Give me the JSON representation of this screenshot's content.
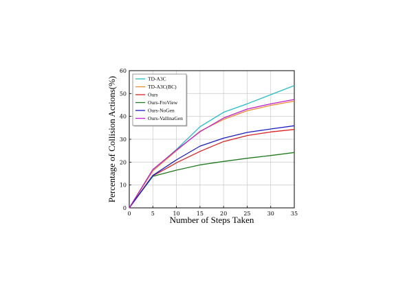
{
  "chart_data": {
    "type": "line",
    "title": "",
    "xlabel": "Number of Steps Taken",
    "ylabel": "Percentage of Collision Actions(%)",
    "xlim": [
      0,
      35
    ],
    "ylim": [
      0,
      60
    ],
    "xticks": [
      0,
      5,
      10,
      15,
      20,
      25,
      30,
      35
    ],
    "yticks": [
      0,
      10,
      20,
      30,
      40,
      50,
      60
    ],
    "grid": true,
    "legend_position": "top-left",
    "x": [
      0,
      5,
      10,
      15,
      20,
      25,
      30,
      35
    ],
    "series": [
      {
        "name": "TD-A3C",
        "color": "#1fbfc6",
        "values": [
          0,
          16.5,
          25.5,
          35.5,
          41.8,
          45.5,
          49.5,
          53.5
        ]
      },
      {
        "name": "TD-A3C(BC)",
        "color": "#ee8a2e",
        "values": [
          0,
          16.2,
          25.0,
          33.5,
          38.7,
          42.5,
          44.8,
          46.7
        ]
      },
      {
        "name": "Ours",
        "color": "#e02020",
        "values": [
          0,
          14.0,
          19.7,
          24.7,
          29.0,
          31.6,
          33.2,
          34.3
        ]
      },
      {
        "name": "Ours-FroView",
        "color": "#1e7a1e",
        "values": [
          0,
          13.8,
          16.5,
          18.8,
          20.3,
          21.7,
          22.9,
          24.2
        ]
      },
      {
        "name": "Ours-NoGen",
        "color": "#1a1ac8",
        "values": [
          0,
          14.2,
          21.0,
          27.0,
          30.5,
          33.0,
          34.5,
          35.9
        ]
      },
      {
        "name": "Ours-VallinaGen",
        "color": "#c21bd1",
        "values": [
          0,
          16.8,
          25.3,
          33.3,
          39.3,
          43.2,
          45.5,
          47.4
        ]
      }
    ]
  }
}
